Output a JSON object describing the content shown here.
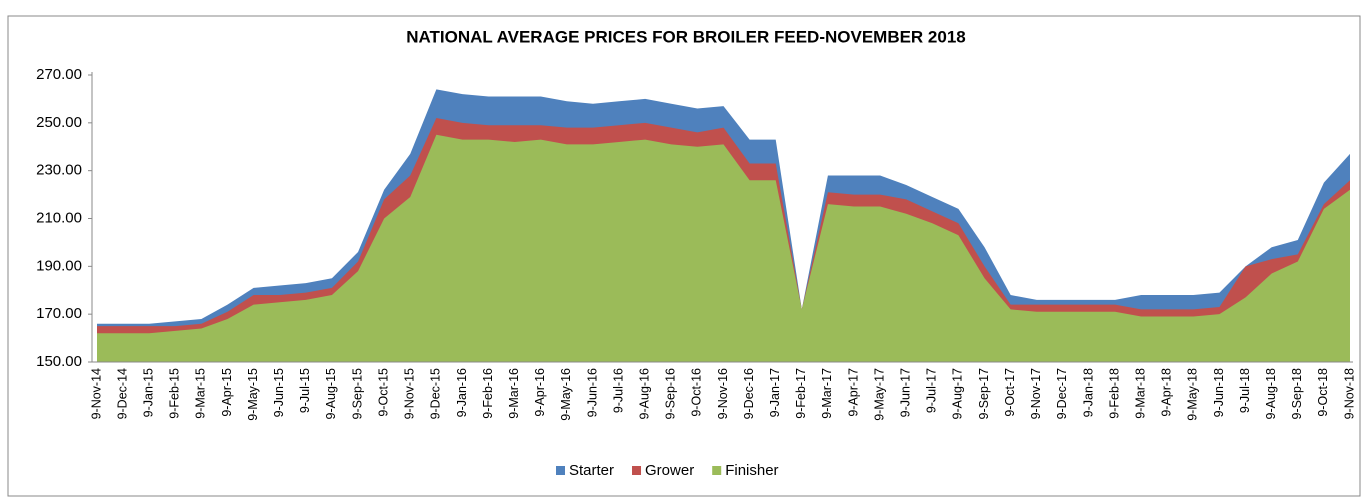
{
  "chart_data": {
    "type": "area",
    "title": "NATIONAL AVERAGE PRICES FOR BROILER FEED-NOVEMBER 2018",
    "categories": [
      "9-Nov-14",
      "9-Dec-14",
      "9-Jan-15",
      "9-Feb-15",
      "9-Mar-15",
      "9-Apr-15",
      "9-May-15",
      "9-Jun-15",
      "9-Jul-15",
      "9-Aug-15",
      "9-Sep-15",
      "9-Oct-15",
      "9-Nov-15",
      "9-Dec-15",
      "9-Jan-16",
      "9-Feb-16",
      "9-Mar-16",
      "9-Apr-16",
      "9-May-16",
      "9-Jun-16",
      "9-Jul-16",
      "9-Aug-16",
      "9-Sep-16",
      "9-Oct-16",
      "9-Nov-16",
      "9-Dec-16",
      "9-Jan-17",
      "9-Feb-17",
      "9-Mar-17",
      "9-Apr-17",
      "9-May-17",
      "9-Jun-17",
      "9-Jul-17",
      "9-Aug-17",
      "9-Sep-17",
      "9-Oct-17",
      "9-Nov-17",
      "9-Dec-17",
      "9-Jan-18",
      "9-Feb-18",
      "9-Mar-18",
      "9-Apr-18",
      "9-May-18",
      "9-Jun-18",
      "9-Jul-18",
      "9-Aug-18",
      "9-Sep-18",
      "9-Oct-18",
      "9-Nov-18"
    ],
    "series": [
      {
        "name": "Starter",
        "color": "#4f81bd",
        "values": [
          166,
          166,
          166,
          167,
          168,
          174,
          181,
          182,
          183,
          185,
          196,
          222,
          237,
          264,
          262,
          261,
          261,
          261,
          259,
          258,
          259,
          260,
          258,
          256,
          257,
          243,
          243,
          172,
          228,
          228,
          228,
          224,
          219,
          214,
          198,
          178,
          176,
          176,
          176,
          176,
          178,
          178,
          178,
          179,
          190,
          198,
          201,
          225,
          237
        ]
      },
      {
        "name": "Grower",
        "color": "#c0504d",
        "values": [
          165,
          165,
          165,
          165,
          166,
          171,
          178,
          178,
          179,
          181,
          192,
          218,
          228,
          252,
          250,
          249,
          249,
          249,
          248,
          248,
          249,
          250,
          248,
          246,
          248,
          233,
          233,
          172,
          221,
          220,
          220,
          218,
          213,
          208,
          190,
          174,
          174,
          174,
          174,
          174,
          172,
          172,
          172,
          173,
          190,
          193,
          195,
          216,
          226
        ]
      },
      {
        "name": "Finisher",
        "color": "#9bbb59",
        "values": [
          162,
          162,
          162,
          163,
          164,
          168,
          174,
          175,
          176,
          178,
          188,
          210,
          219,
          245,
          243,
          243,
          242,
          243,
          241,
          241,
          242,
          243,
          241,
          240,
          241,
          226,
          226,
          172,
          216,
          215,
          215,
          212,
          208,
          203,
          185,
          172,
          171,
          171,
          171,
          171,
          169,
          169,
          169,
          170,
          177,
          187,
          192,
          214,
          222
        ]
      }
    ],
    "ylim": [
      150,
      270
    ],
    "yticks": [
      {
        "value": 150,
        "label": "150.00"
      },
      {
        "value": 170,
        "label": "170.00"
      },
      {
        "value": 190,
        "label": "190.00"
      },
      {
        "value": 210,
        "label": "210.00"
      },
      {
        "value": 230,
        "label": "230.00"
      },
      {
        "value": 250,
        "label": "250.00"
      },
      {
        "value": 270,
        "label": "270.00"
      }
    ],
    "legend": "bottom"
  }
}
